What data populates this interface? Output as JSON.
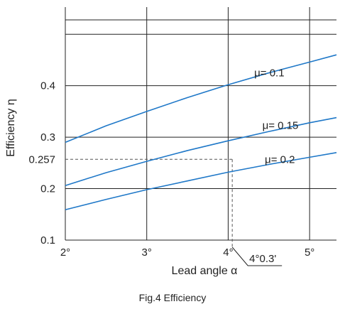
{
  "chart_data": {
    "type": "line",
    "caption": "Fig.4 Efficiency",
    "xlabel": "Lead angle α",
    "ylabel": "Efficiency η",
    "xlim": [
      2,
      5.33
    ],
    "ylim": [
      0.1,
      0.55
    ],
    "x_ticks": [
      {
        "value": 2,
        "label": "2°"
      },
      {
        "value": 3,
        "label": "3°"
      },
      {
        "value": 4,
        "label": "4°"
      },
      {
        "value": 5,
        "label": "5°"
      }
    ],
    "y_ticks": [
      {
        "value": 0.1,
        "label": "0.1"
      },
      {
        "value": 0.2,
        "label": "0.2"
      },
      {
        "value": 0.257,
        "label": "0.257"
      },
      {
        "value": 0.3,
        "label": "0.3"
      },
      {
        "value": 0.4,
        "label": "0.4"
      }
    ],
    "grid": true,
    "series_color": "#1f78c8",
    "series": [
      {
        "name": "μ= 0.1",
        "x": [
          2.0,
          2.5,
          3.0,
          3.5,
          4.0,
          4.5,
          5.0,
          5.33
        ],
        "y": [
          0.29,
          0.322,
          0.35,
          0.377,
          0.402,
          0.425,
          0.446,
          0.46
        ]
      },
      {
        "name": "μ= 0.15",
        "x": [
          2.0,
          2.5,
          3.0,
          3.5,
          4.0,
          4.5,
          5.0,
          5.33
        ],
        "y": [
          0.206,
          0.231,
          0.253,
          0.274,
          0.293,
          0.311,
          0.328,
          0.338
        ]
      },
      {
        "name": "μ= 0.2",
        "x": [
          2.0,
          2.5,
          3.0,
          3.5,
          4.0,
          4.5,
          5.0,
          5.33
        ],
        "y": [
          0.159,
          0.179,
          0.198,
          0.215,
          0.232,
          0.247,
          0.261,
          0.27
        ]
      }
    ],
    "annotation": {
      "x": 4.05,
      "y": 0.257,
      "label": "4°0.3'"
    }
  }
}
